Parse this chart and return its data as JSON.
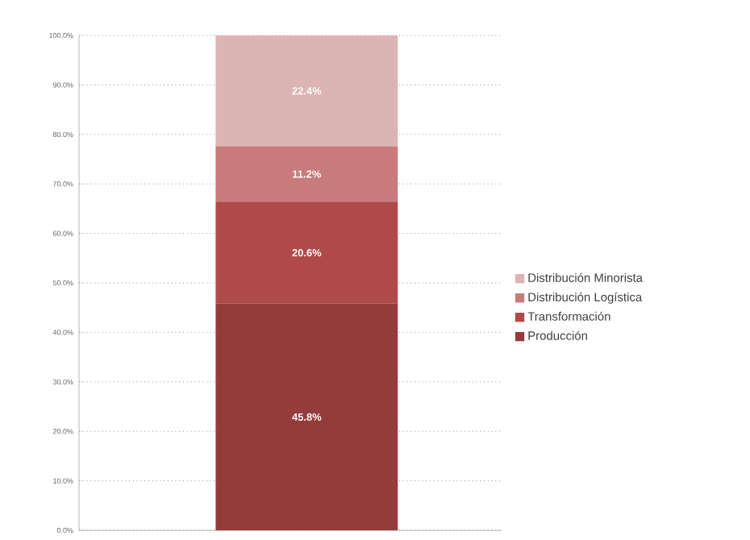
{
  "chart_data": {
    "type": "bar",
    "stacked": true,
    "categories": [
      null
    ],
    "series": [
      {
        "name": "Producción",
        "color": "#943c3c",
        "values": [
          45.8
        ],
        "value_labels": [
          "45.8%"
        ]
      },
      {
        "name": "Transformación",
        "color": "#b04a4a",
        "values": [
          20.6
        ],
        "value_labels": [
          "20.6%"
        ]
      },
      {
        "name": "Distribución Logística",
        "color": "#c87b7b",
        "values": [
          11.2
        ],
        "value_labels": [
          "11.2%"
        ]
      },
      {
        "name": "Distribución Minorista",
        "color": "#dcb4b4",
        "values": [
          22.4
        ],
        "value_labels": [
          "22.4%"
        ]
      }
    ],
    "ylim": [
      0,
      100
    ],
    "yticks": [
      {
        "value": 0,
        "label": "0.0%"
      },
      {
        "value": 10,
        "label": "10.0%"
      },
      {
        "value": 20,
        "label": "20.0%"
      },
      {
        "value": 30,
        "label": "30.0%"
      },
      {
        "value": 40,
        "label": "40.0%"
      },
      {
        "value": 50,
        "label": "50.0%"
      },
      {
        "value": 60,
        "label": "60.0%"
      },
      {
        "value": 70,
        "label": "70.0%"
      },
      {
        "value": 80,
        "label": "80.0%"
      },
      {
        "value": 90,
        "label": "90.0%"
      },
      {
        "value": 100,
        "label": "100.0%"
      }
    ],
    "grid": "y",
    "legend": "right"
  }
}
